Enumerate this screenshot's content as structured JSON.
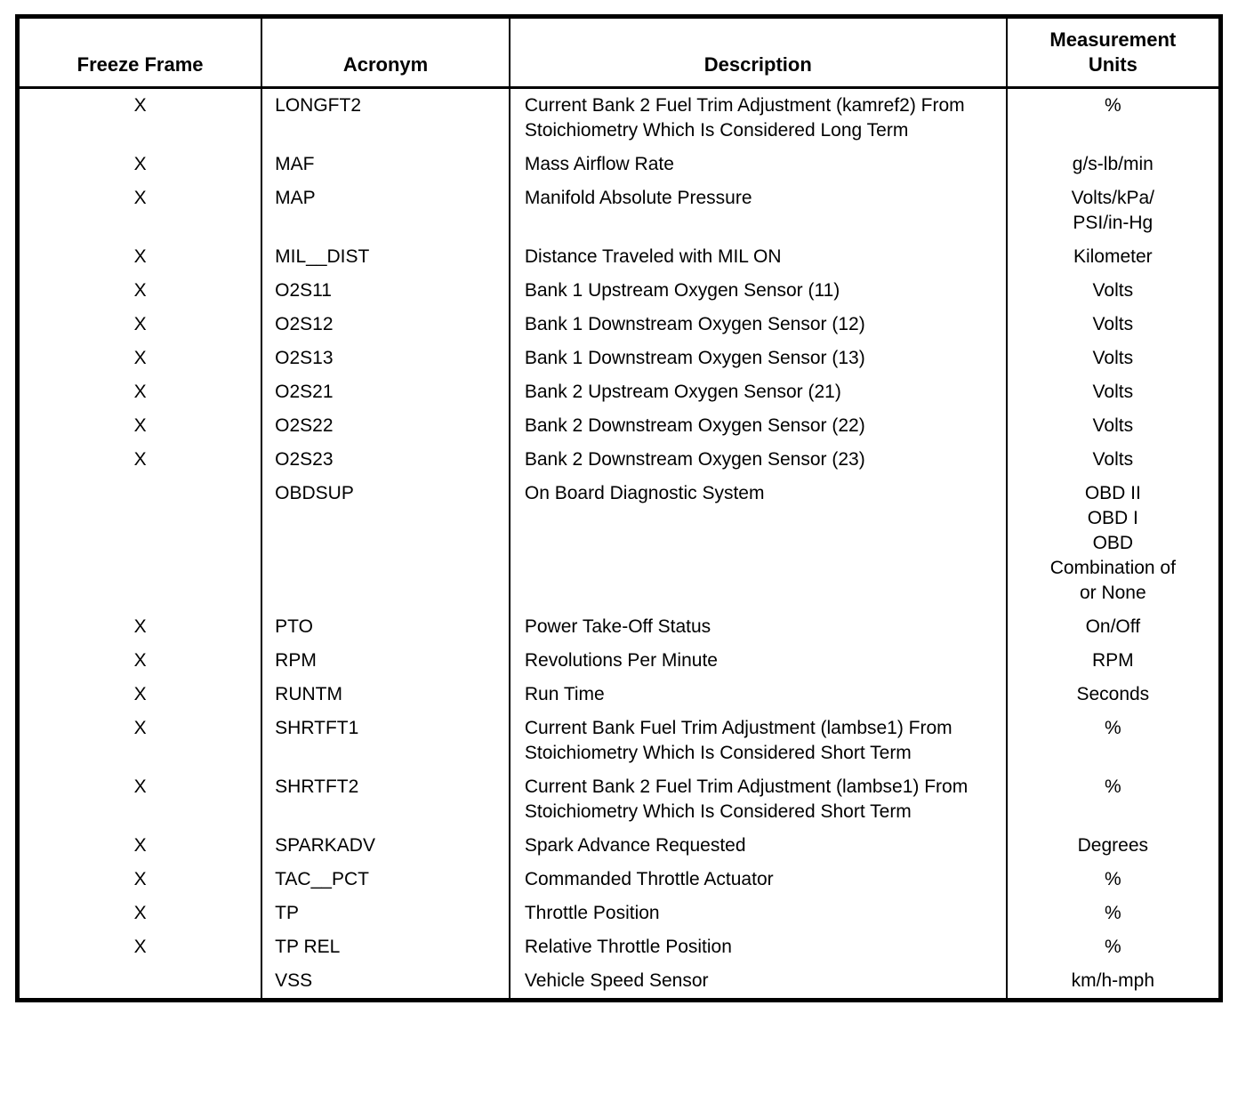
{
  "table": {
    "columns": [
      "Freeze Frame",
      "Acronym",
      "Description",
      "Measurement\nUnits"
    ],
    "rows": [
      {
        "freeze_frame": "X",
        "acronym": "LONGFT2",
        "description": "Current Bank 2 Fuel Trim Adjustment (kamref2) From Stoichiometry Which Is Considered Long Term",
        "units": "%"
      },
      {
        "freeze_frame": "X",
        "acronym": "MAF",
        "description": "Mass Airflow Rate",
        "units": "g/s-lb/min"
      },
      {
        "freeze_frame": "X",
        "acronym": "MAP",
        "description": "Manifold Absolute Pressure",
        "units": "Volts/kPa/\nPSI/in-Hg"
      },
      {
        "freeze_frame": "X",
        "acronym": "MIL__DIST",
        "description": "Distance Traveled with MIL ON",
        "units": "Kilometer"
      },
      {
        "freeze_frame": "X",
        "acronym": "O2S11",
        "description": "Bank 1 Upstream Oxygen Sensor (11)",
        "units": "Volts"
      },
      {
        "freeze_frame": "X",
        "acronym": "O2S12",
        "description": "Bank 1 Downstream Oxygen Sensor (12)",
        "units": "Volts"
      },
      {
        "freeze_frame": "X",
        "acronym": "O2S13",
        "description": "Bank 1 Downstream Oxygen Sensor (13)",
        "units": "Volts"
      },
      {
        "freeze_frame": "X",
        "acronym": "O2S21",
        "description": "Bank 2 Upstream Oxygen Sensor (21)",
        "units": "Volts"
      },
      {
        "freeze_frame": "X",
        "acronym": "O2S22",
        "description": "Bank 2 Downstream Oxygen Sensor (22)",
        "units": "Volts"
      },
      {
        "freeze_frame": "X",
        "acronym": "O2S23",
        "description": "Bank 2 Downstream Oxygen Sensor (23)",
        "units": "Volts"
      },
      {
        "freeze_frame": "",
        "acronym": "OBDSUP",
        "description": "On Board Diagnostic System",
        "units": "OBD II\nOBD I\nOBD\nCombination of\nor None"
      },
      {
        "freeze_frame": "X",
        "acronym": "PTO",
        "description": "Power Take-Off Status",
        "units": "On/Off"
      },
      {
        "freeze_frame": "X",
        "acronym": "RPM",
        "description": "Revolutions Per Minute",
        "units": "RPM"
      },
      {
        "freeze_frame": "X",
        "acronym": "RUNTM",
        "description": "Run Time",
        "units": "Seconds"
      },
      {
        "freeze_frame": "X",
        "acronym": "SHRTFT1",
        "description": "Current Bank Fuel Trim Adjustment (lambse1) From Stoichiometry Which Is Considered Short Term",
        "units": "%"
      },
      {
        "freeze_frame": "X",
        "acronym": "SHRTFT2",
        "description": "Current Bank 2 Fuel Trim Adjustment (lambse1) From Stoichiometry Which Is Considered Short Term",
        "units": "%"
      },
      {
        "freeze_frame": "X",
        "acronym": "SPARKADV",
        "description": "Spark Advance Requested",
        "units": "Degrees"
      },
      {
        "freeze_frame": "X",
        "acronym": "TAC__PCT",
        "description": "Commanded Throttle Actuator",
        "units": "%"
      },
      {
        "freeze_frame": "X",
        "acronym": "TP",
        "description": "Throttle Position",
        "units": "%"
      },
      {
        "freeze_frame": "X",
        "acronym": "TP REL",
        "description": "Relative Throttle Position",
        "units": "%"
      },
      {
        "freeze_frame": "",
        "acronym": "VSS",
        "description": "Vehicle Speed Sensor",
        "units": "km/h-mph"
      }
    ]
  }
}
